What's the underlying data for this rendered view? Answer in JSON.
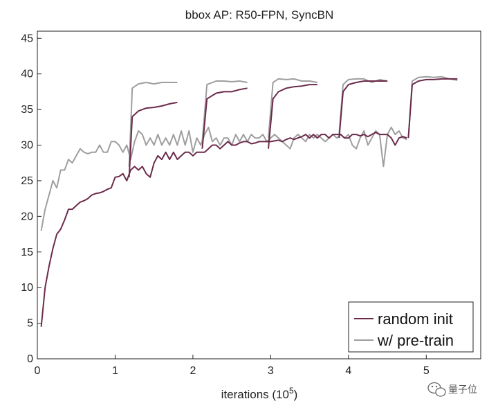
{
  "chart_data": {
    "type": "line",
    "title": "bbox AP: R50-FPN, SyncBN",
    "xlabel_main": "iterations (10",
    "xlabel_exp": "5",
    "xlabel_tail": ")",
    "ylabel": "",
    "xlim": [
      0,
      5.7
    ],
    "ylim": [
      0,
      46
    ],
    "xticks": [
      0,
      1,
      2,
      3,
      4,
      5
    ],
    "yticks": [
      0,
      5,
      10,
      15,
      20,
      25,
      30,
      35,
      40,
      45
    ],
    "grid": false,
    "legend_position": "bottom-right",
    "series": [
      {
        "name": "random init",
        "color": "#6b2a4a",
        "segments": [
          [
            [
              0.05,
              4.5
            ],
            [
              0.1,
              10
            ],
            [
              0.15,
              13
            ],
            [
              0.2,
              15.5
            ],
            [
              0.25,
              17.5
            ],
            [
              0.3,
              18.2
            ],
            [
              0.35,
              19.5
            ],
            [
              0.4,
              21
            ],
            [
              0.45,
              21
            ],
            [
              0.5,
              21.5
            ],
            [
              0.55,
              22
            ],
            [
              0.6,
              22.2
            ],
            [
              0.65,
              22.5
            ],
            [
              0.7,
              23
            ],
            [
              0.75,
              23.2
            ],
            [
              0.8,
              23.3
            ],
            [
              0.85,
              23.5
            ],
            [
              0.9,
              23.8
            ],
            [
              0.95,
              24
            ],
            [
              1.0,
              25.5
            ],
            [
              1.05,
              25.6
            ],
            [
              1.1,
              26
            ],
            [
              1.15,
              25
            ],
            [
              1.2,
              26.5
            ],
            [
              1.25,
              27
            ],
            [
              1.3,
              26.5
            ],
            [
              1.35,
              27
            ],
            [
              1.4,
              26
            ],
            [
              1.45,
              25.5
            ],
            [
              1.5,
              27.5
            ],
            [
              1.55,
              28.5
            ],
            [
              1.6,
              28
            ],
            [
              1.65,
              29
            ],
            [
              1.7,
              28
            ],
            [
              1.75,
              29
            ],
            [
              1.8,
              28
            ],
            [
              1.85,
              28.5
            ],
            [
              1.9,
              29
            ],
            [
              1.95,
              29
            ],
            [
              2.0,
              28.5
            ],
            [
              2.05,
              29
            ],
            [
              2.1,
              29
            ],
            [
              2.15,
              29
            ],
            [
              2.2,
              29.5
            ],
            [
              2.25,
              30
            ],
            [
              2.3,
              30
            ],
            [
              2.35,
              29.5
            ],
            [
              2.4,
              30
            ],
            [
              2.45,
              30.5
            ],
            [
              2.5,
              30
            ],
            [
              2.55,
              30
            ],
            [
              2.6,
              30.3
            ],
            [
              2.65,
              30.5
            ],
            [
              2.7,
              30.5
            ],
            [
              2.75,
              30.2
            ],
            [
              2.8,
              30.3
            ],
            [
              2.85,
              30.5
            ],
            [
              2.9,
              30.5
            ],
            [
              2.95,
              30.5
            ],
            [
              3.0,
              30.5
            ],
            [
              3.05,
              30.6
            ],
            [
              3.1,
              30.7
            ],
            [
              3.15,
              30.5
            ],
            [
              3.2,
              30.8
            ],
            [
              3.25,
              31
            ],
            [
              3.3,
              30.8
            ],
            [
              3.35,
              31
            ],
            [
              3.4,
              31.2
            ],
            [
              3.45,
              31.5
            ],
            [
              3.5,
              31
            ],
            [
              3.55,
              31.5
            ],
            [
              3.6,
              31
            ],
            [
              3.65,
              31.5
            ],
            [
              3.7,
              31.5
            ],
            [
              3.75,
              31
            ],
            [
              3.8,
              31.5
            ],
            [
              3.85,
              31.5
            ],
            [
              3.9,
              31.5
            ],
            [
              3.95,
              31
            ],
            [
              4.0,
              31
            ],
            [
              4.05,
              31.5
            ],
            [
              4.1,
              31.5
            ],
            [
              4.15,
              31.3
            ],
            [
              4.2,
              31.5
            ],
            [
              4.25,
              31.2
            ],
            [
              4.3,
              31.5
            ],
            [
              4.35,
              31.8
            ],
            [
              4.4,
              31.5
            ],
            [
              4.45,
              31.5
            ],
            [
              4.5,
              31.5
            ],
            [
              4.55,
              31
            ],
            [
              4.6,
              30
            ],
            [
              4.65,
              31
            ],
            [
              4.7,
              31.2
            ],
            [
              4.75,
              31
            ]
          ],
          [
            [
              1.18,
              25.5
            ],
            [
              1.22,
              34
            ],
            [
              1.3,
              34.8
            ],
            [
              1.4,
              35.2
            ],
            [
              1.5,
              35.3
            ],
            [
              1.6,
              35.5
            ],
            [
              1.7,
              35.8
            ],
            [
              1.8,
              36
            ]
          ],
          [
            [
              2.12,
              29.5
            ],
            [
              2.18,
              36.5
            ],
            [
              2.3,
              37.3
            ],
            [
              2.4,
              37.5
            ],
            [
              2.5,
              37.5
            ],
            [
              2.6,
              37.8
            ],
            [
              2.7,
              38
            ]
          ],
          [
            [
              2.97,
              29.5
            ],
            [
              3.03,
              36.5
            ],
            [
              3.1,
              37.5
            ],
            [
              3.2,
              38
            ],
            [
              3.3,
              38.2
            ],
            [
              3.4,
              38.3
            ],
            [
              3.5,
              38.5
            ],
            [
              3.6,
              38.5
            ]
          ],
          [
            [
              3.88,
              31
            ],
            [
              3.93,
              37.5
            ],
            [
              4.0,
              38.5
            ],
            [
              4.1,
              38.8
            ],
            [
              4.2,
              39
            ],
            [
              4.3,
              39
            ],
            [
              4.4,
              39
            ],
            [
              4.5,
              39
            ]
          ],
          [
            [
              4.77,
              31
            ],
            [
              4.82,
              38.5
            ],
            [
              4.9,
              39
            ],
            [
              5.0,
              39.2
            ],
            [
              5.1,
              39.2
            ],
            [
              5.2,
              39.3
            ],
            [
              5.3,
              39.3
            ],
            [
              5.4,
              39.3
            ]
          ]
        ]
      },
      {
        "name": "w/ pre-train",
        "color": "#9e9e9e",
        "segments": [
          [
            [
              0.05,
              18
            ],
            [
              0.1,
              21
            ],
            [
              0.15,
              23
            ],
            [
              0.2,
              25
            ],
            [
              0.25,
              24
            ],
            [
              0.3,
              26.5
            ],
            [
              0.35,
              26.5
            ],
            [
              0.4,
              28
            ],
            [
              0.45,
              27.5
            ],
            [
              0.5,
              28.5
            ],
            [
              0.55,
              29.5
            ],
            [
              0.6,
              29
            ],
            [
              0.65,
              28.8
            ],
            [
              0.7,
              29
            ],
            [
              0.75,
              29
            ],
            [
              0.8,
              30
            ],
            [
              0.85,
              29
            ],
            [
              0.9,
              29
            ],
            [
              0.95,
              30.5
            ],
            [
              1.0,
              30.5
            ],
            [
              1.05,
              30
            ],
            [
              1.1,
              29
            ],
            [
              1.15,
              30
            ],
            [
              1.2,
              28
            ],
            [
              1.25,
              30.5
            ],
            [
              1.3,
              32
            ],
            [
              1.35,
              31.5
            ],
            [
              1.4,
              30
            ],
            [
              1.45,
              31
            ],
            [
              1.5,
              30
            ],
            [
              1.55,
              31.5
            ],
            [
              1.6,
              30
            ],
            [
              1.65,
              31
            ],
            [
              1.7,
              30
            ],
            [
              1.75,
              31.5
            ],
            [
              1.8,
              30
            ],
            [
              1.85,
              32
            ],
            [
              1.9,
              30
            ],
            [
              1.95,
              32
            ],
            [
              2.0,
              29
            ],
            [
              2.05,
              31
            ],
            [
              2.1,
              30
            ],
            [
              2.15,
              31.5
            ],
            [
              2.2,
              32.5
            ],
            [
              2.25,
              30.5
            ],
            [
              2.3,
              31
            ],
            [
              2.35,
              30
            ],
            [
              2.4,
              31
            ],
            [
              2.45,
              31
            ],
            [
              2.5,
              30
            ],
            [
              2.55,
              31.5
            ],
            [
              2.6,
              30.5
            ],
            [
              2.65,
              31.5
            ],
            [
              2.7,
              30.5
            ],
            [
              2.75,
              31.5
            ],
            [
              2.8,
              31
            ],
            [
              2.85,
              31
            ],
            [
              2.9,
              31.5
            ],
            [
              2.95,
              30.5
            ],
            [
              3.0,
              31
            ],
            [
              3.05,
              31.5
            ],
            [
              3.1,
              31
            ],
            [
              3.15,
              30.5
            ],
            [
              3.2,
              30
            ],
            [
              3.25,
              29.5
            ],
            [
              3.3,
              31
            ],
            [
              3.35,
              31.5
            ],
            [
              3.4,
              31
            ],
            [
              3.45,
              30.5
            ],
            [
              3.5,
              31.5
            ],
            [
              3.55,
              31
            ],
            [
              3.6,
              31.5
            ],
            [
              3.65,
              31
            ],
            [
              3.7,
              30.5
            ],
            [
              3.75,
              31
            ],
            [
              3.8,
              31.5
            ],
            [
              3.85,
              31
            ],
            [
              3.9,
              31.5
            ],
            [
              3.95,
              31
            ],
            [
              4.0,
              31.5
            ],
            [
              4.05,
              30
            ],
            [
              4.1,
              29.5
            ],
            [
              4.15,
              31
            ],
            [
              4.2,
              32
            ],
            [
              4.25,
              30
            ],
            [
              4.3,
              31
            ],
            [
              4.35,
              32
            ],
            [
              4.4,
              31.5
            ],
            [
              4.45,
              27
            ],
            [
              4.5,
              31.5
            ],
            [
              4.55,
              32.5
            ],
            [
              4.6,
              31.5
            ],
            [
              4.65,
              32
            ],
            [
              4.7,
              31
            ],
            [
              4.75,
              30.8
            ]
          ],
          [
            [
              1.18,
              27
            ],
            [
              1.22,
              38
            ],
            [
              1.3,
              38.6
            ],
            [
              1.4,
              38.8
            ],
            [
              1.5,
              38.6
            ],
            [
              1.6,
              38.8
            ],
            [
              1.7,
              38.8
            ],
            [
              1.8,
              38.8
            ]
          ],
          [
            [
              2.12,
              30.5
            ],
            [
              2.18,
              38.5
            ],
            [
              2.3,
              39
            ],
            [
              2.4,
              39
            ],
            [
              2.5,
              38.9
            ],
            [
              2.6,
              39
            ],
            [
              2.7,
              38.8
            ]
          ],
          [
            [
              2.97,
              31
            ],
            [
              3.03,
              38.8
            ],
            [
              3.1,
              39.3
            ],
            [
              3.2,
              39.2
            ],
            [
              3.3,
              39.3
            ],
            [
              3.4,
              39
            ],
            [
              3.5,
              39
            ],
            [
              3.6,
              38.8
            ]
          ],
          [
            [
              3.88,
              31.5
            ],
            [
              3.93,
              38.5
            ],
            [
              4.0,
              39.2
            ],
            [
              4.1,
              39.3
            ],
            [
              4.2,
              39.3
            ],
            [
              4.3,
              38.8
            ],
            [
              4.4,
              39.2
            ],
            [
              4.5,
              39
            ]
          ],
          [
            [
              4.77,
              31
            ],
            [
              4.82,
              39
            ],
            [
              4.9,
              39.5
            ],
            [
              5.0,
              39.6
            ],
            [
              5.1,
              39.5
            ],
            [
              5.2,
              39.6
            ],
            [
              5.3,
              39.3
            ],
            [
              5.4,
              39.1
            ]
          ]
        ]
      }
    ]
  },
  "watermark": {
    "text": "量子位",
    "icon": "wechat-bubble-icon"
  },
  "colors": {
    "axis": "#222222",
    "background": "#ffffff"
  }
}
